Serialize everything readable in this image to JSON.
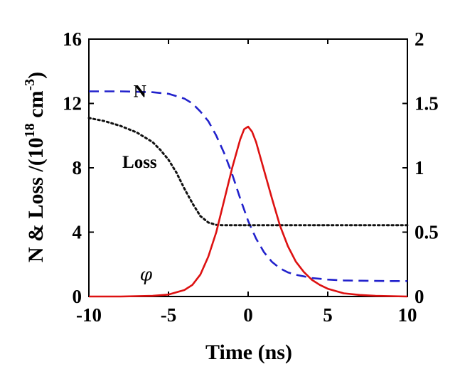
{
  "chart_data": {
    "type": "line",
    "xlabel": "Time (ns)",
    "ylabel": "N & Loss /(10",
    "ylabel_sup1": "18",
    "ylabel_unit": " cm",
    "ylabel_sup2": "-3",
    "ylabel_close": ")",
    "xlim": [
      -10,
      10
    ],
    "ylim_left": [
      0,
      16
    ],
    "ylim_right": [
      0,
      2
    ],
    "x_ticks": [
      -10,
      -5,
      0,
      5,
      10
    ],
    "x_tick_labels": [
      "-10",
      "-5",
      "0",
      "5",
      "10"
    ],
    "y_left_ticks": [
      0,
      4,
      8,
      12,
      16
    ],
    "y_left_tick_labels": [
      "0",
      "4",
      "8",
      "12",
      "16"
    ],
    "y_right_ticks": [
      0,
      0.5,
      1,
      1.5,
      2
    ],
    "y_right_tick_labels": [
      "0",
      "0.5",
      "1",
      "1.5",
      "2"
    ],
    "grid": false,
    "series": [
      {
        "name": "N",
        "axis": "left",
        "color": "#2222cc",
        "dash": "dashed",
        "x": [
          -10,
          -8,
          -6,
          -5,
          -4.5,
          -4,
          -3.5,
          -3,
          -2.5,
          -2,
          -1.5,
          -1,
          -0.5,
          0,
          0.5,
          1,
          1.5,
          2,
          2.5,
          3,
          3.5,
          4,
          5,
          6,
          7,
          8,
          9,
          10
        ],
        "values": [
          12.75,
          12.75,
          12.7,
          12.6,
          12.45,
          12.3,
          12.0,
          11.5,
          10.9,
          10.0,
          8.9,
          7.6,
          6.1,
          4.7,
          3.6,
          2.75,
          2.15,
          1.75,
          1.5,
          1.35,
          1.25,
          1.15,
          1.05,
          1.0,
          0.98,
          0.97,
          0.96,
          0.96
        ]
      },
      {
        "name": "Loss",
        "axis": "left",
        "color": "#111111",
        "dash": "dotted",
        "x": [
          -10,
          -9,
          -8,
          -7,
          -6,
          -5.5,
          -5,
          -4.5,
          -4,
          -3.5,
          -3,
          -2.5,
          -2,
          -1.5,
          -1,
          0,
          2,
          4,
          6,
          8,
          10
        ],
        "values": [
          11.1,
          10.9,
          10.6,
          10.2,
          9.6,
          9.1,
          8.5,
          7.7,
          6.7,
          5.8,
          5.0,
          4.6,
          4.45,
          4.43,
          4.43,
          4.43,
          4.43,
          4.43,
          4.43,
          4.43,
          4.43
        ]
      },
      {
        "name": "φ",
        "axis": "right",
        "color": "#dd1111",
        "dash": "solid",
        "x": [
          -10,
          -8,
          -6,
          -5,
          -4,
          -3.5,
          -3,
          -2.5,
          -2,
          -1.5,
          -1,
          -0.5,
          -0.25,
          0,
          0.25,
          0.5,
          1,
          1.5,
          2,
          2.5,
          3,
          3.5,
          4,
          4.5,
          5,
          6,
          7,
          8,
          10
        ],
        "values": [
          0.0,
          0.0,
          0.005,
          0.015,
          0.05,
          0.09,
          0.17,
          0.31,
          0.5,
          0.75,
          1.0,
          1.22,
          1.3,
          1.32,
          1.28,
          1.2,
          0.98,
          0.76,
          0.55,
          0.39,
          0.27,
          0.19,
          0.13,
          0.09,
          0.06,
          0.025,
          0.012,
          0.005,
          0.0
        ]
      }
    ],
    "annotations": [
      {
        "text": "N",
        "x": -7.2,
        "y": 12.4
      },
      {
        "text": "Loss",
        "x": -7.9,
        "y": 8.0
      },
      {
        "text": "φ",
        "x": -6.8,
        "y": 1.0
      }
    ]
  }
}
